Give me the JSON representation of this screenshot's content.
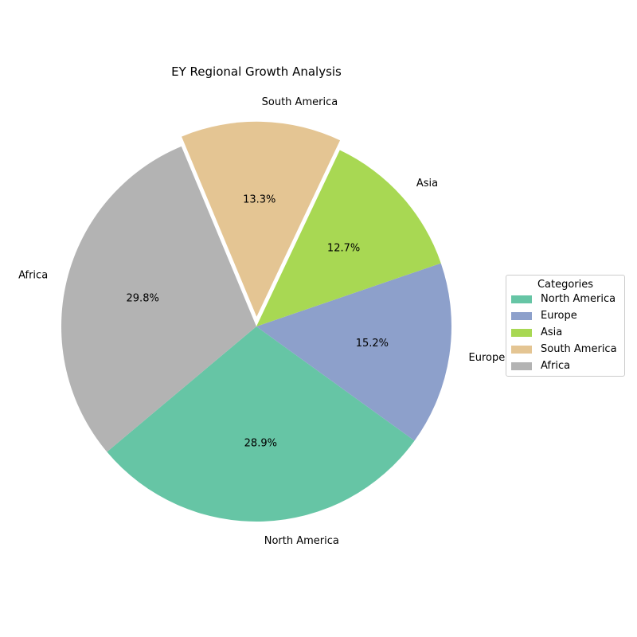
{
  "chart_data": {
    "type": "pie",
    "title": "EY Regional Growth Analysis",
    "categories": [
      "North America",
      "Europe",
      "Asia",
      "South America",
      "Africa"
    ],
    "values": [
      28.9,
      15.2,
      12.7,
      13.3,
      29.8
    ],
    "value_labels": [
      "28.9%",
      "15.2%",
      "12.7%",
      "13.3%",
      "29.8%"
    ],
    "exploded": [
      false,
      false,
      false,
      true,
      false
    ],
    "colors": [
      "#66c5a5",
      "#8da0cb",
      "#a8d853",
      "#e4c593",
      "#b3b3b3"
    ],
    "legend_title": "Categories",
    "legend_position": "center-right"
  }
}
